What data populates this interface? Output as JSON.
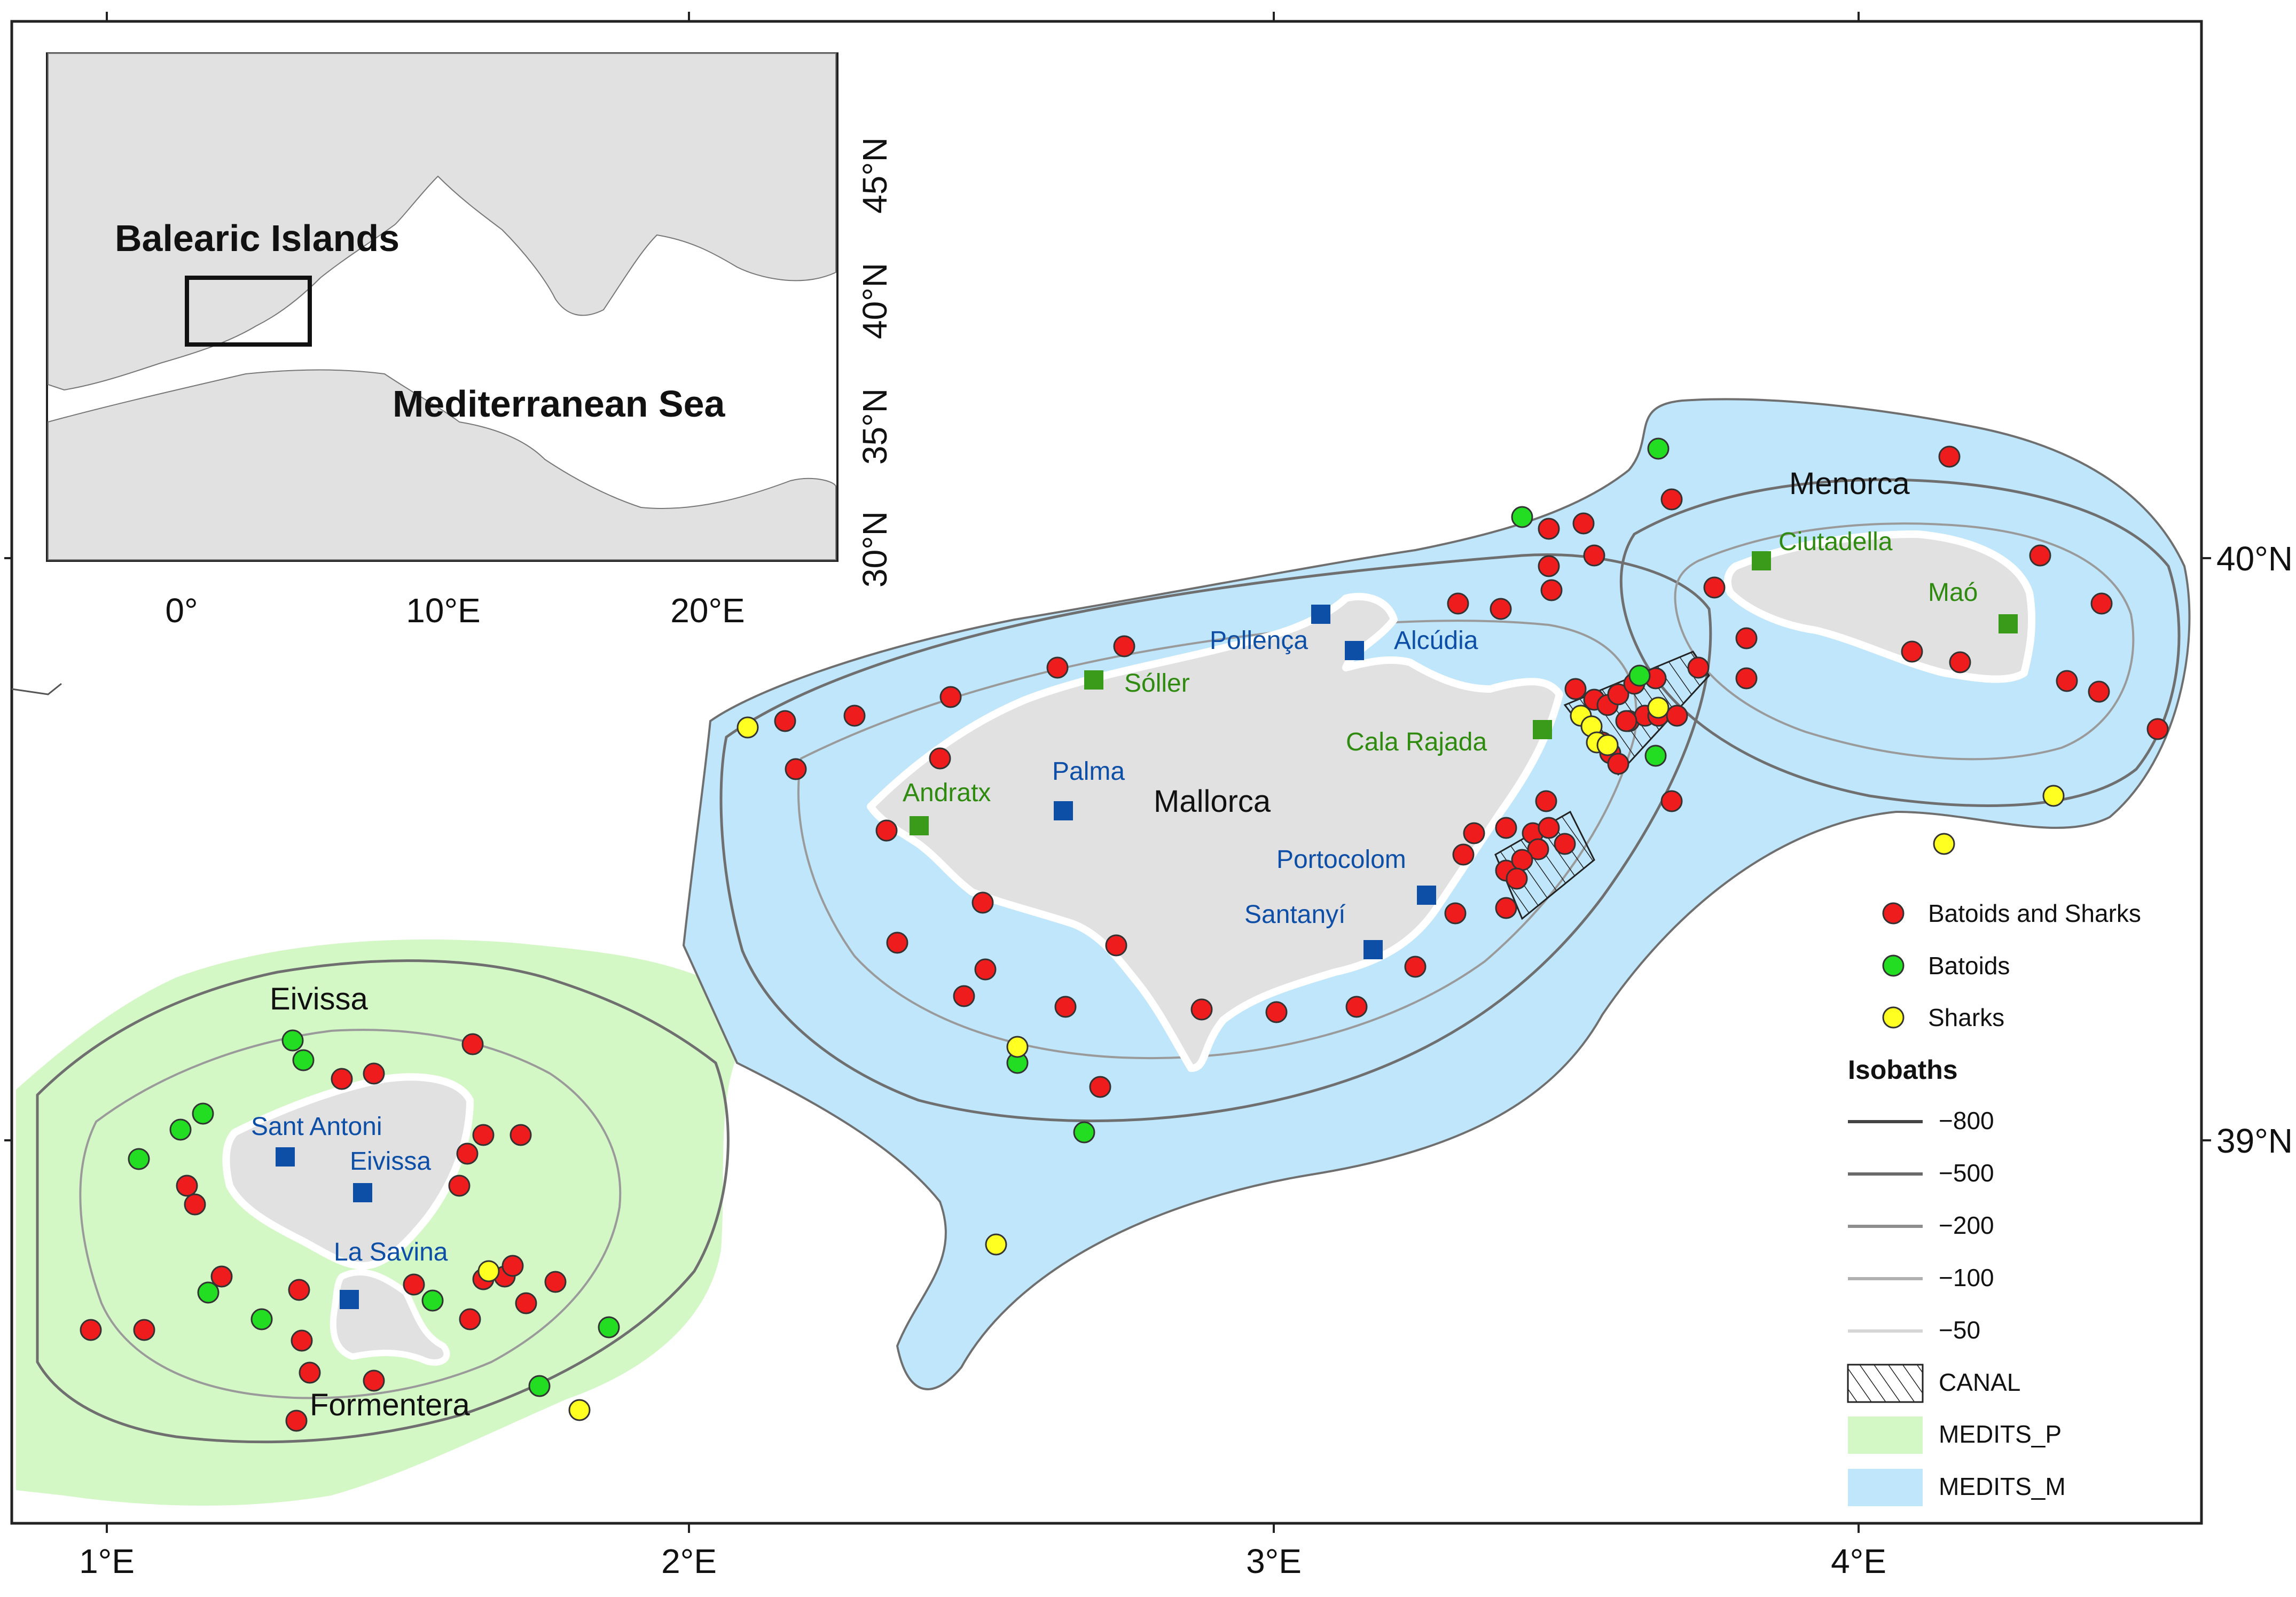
{
  "inset": {
    "labels": {
      "balearic": "Balearic Islands",
      "med": "Mediterranean Sea"
    },
    "xticks": [
      "0°",
      "10°E",
      "20°E"
    ],
    "yticks": [
      "45°N",
      "40°N",
      "35°N",
      "30°N"
    ]
  },
  "axes": {
    "xticks": [
      "1°E",
      "2°E",
      "3°E",
      "4°E"
    ],
    "yticks": [
      "40°N",
      "39°N"
    ]
  },
  "islands": {
    "mallorca": "Mallorca",
    "menorca": "Menorca",
    "eivissa": "Eivissa",
    "formentera": "Formentera"
  },
  "ports_blue": [
    {
      "name": "Pollença"
    },
    {
      "name": "Alcúdia"
    },
    {
      "name": "Palma"
    },
    {
      "name": "Portocolom"
    },
    {
      "name": "Santanyí"
    },
    {
      "name": "Sant Antoni"
    },
    {
      "name": "Eivissa"
    },
    {
      "name": "La Savina"
    }
  ],
  "ports_green": [
    {
      "name": "Sóller"
    },
    {
      "name": "Andratx"
    },
    {
      "name": "Cala Rajada"
    },
    {
      "name": "Ciutadella"
    },
    {
      "name": "Maó"
    }
  ],
  "legend": {
    "batoids_sharks": "Batoids and Sharks",
    "batoids": "Batoids",
    "sharks": "Sharks",
    "isobaths_title": "Isobaths",
    "iso": [
      "−800",
      "−500",
      "−200",
      "−100",
      "−50"
    ],
    "canal": "CANAL",
    "medits_p": "MEDITS_P",
    "medits_m": "MEDITS_M"
  },
  "colors": {
    "land": "#e1e1e1",
    "medits_m": "#bfe6fb",
    "medits_p": "#d4f7c6",
    "batoids_sharks": "#ee1c1c",
    "batoids": "#22dd22",
    "sharks": "#ffff22",
    "port_blue": "#0d4ea6",
    "port_green": "#3a9a1a"
  }
}
